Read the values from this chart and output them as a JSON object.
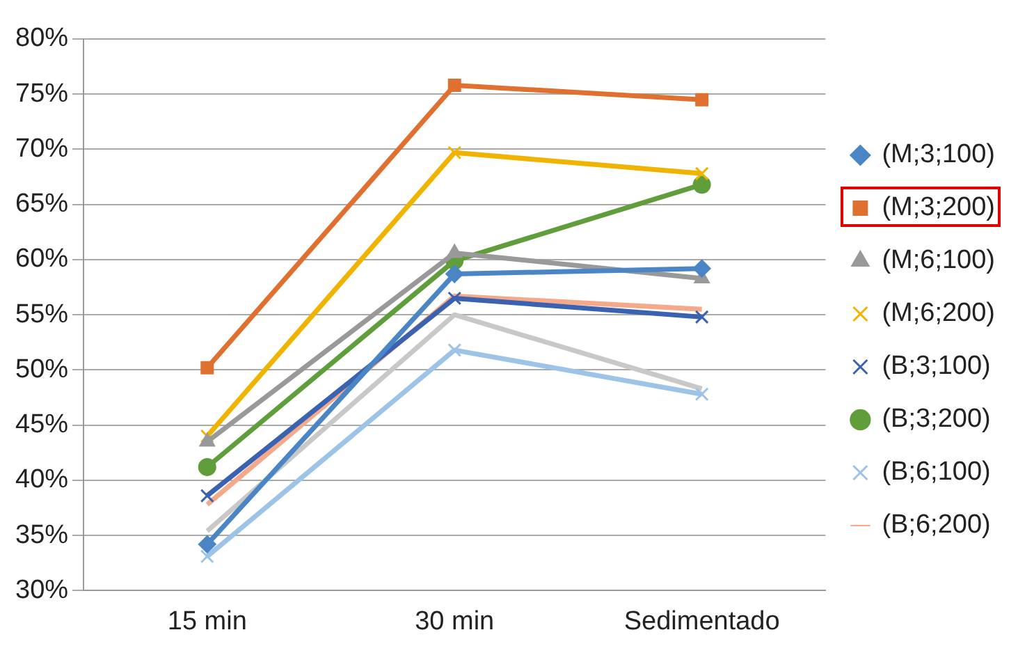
{
  "chart_data": {
    "type": "line",
    "categories": [
      "15 min",
      "30 min",
      "Sedimentado"
    ],
    "ylim": [
      30,
      80
    ],
    "yticks": [
      {
        "value": 30,
        "label": "30%"
      },
      {
        "value": 35,
        "label": "35%"
      },
      {
        "value": 40,
        "label": "40%"
      },
      {
        "value": 45,
        "label": "45%"
      },
      {
        "value": 50,
        "label": "50%"
      },
      {
        "value": 55,
        "label": "55%"
      },
      {
        "value": 60,
        "label": "60%"
      },
      {
        "value": 65,
        "label": "65%"
      },
      {
        "value": 70,
        "label": "70%"
      },
      {
        "value": 75,
        "label": "75%"
      },
      {
        "value": 80,
        "label": "80%"
      }
    ],
    "grid": "y",
    "legend": "right",
    "series": [
      {
        "name": "(M;3;100)",
        "color": "#4a86c5",
        "marker": "diamond",
        "values": [
          34.2,
          58.7,
          59.2
        ]
      },
      {
        "name": "(M;3;200)",
        "color": "#e07030",
        "marker": "square",
        "values": [
          50.2,
          75.8,
          74.5
        ]
      },
      {
        "name": "(M;6;100)",
        "color": "#999999",
        "marker": "triangle",
        "values": [
          43.5,
          60.6,
          58.3
        ]
      },
      {
        "name": "(M;6;200)",
        "color": "#f0b400",
        "marker": "cross",
        "values": [
          44.0,
          69.7,
          67.8
        ]
      },
      {
        "name": "(B;3;100)",
        "color": "#3a62b0",
        "marker": "cross",
        "values": [
          38.6,
          56.5,
          54.8
        ]
      },
      {
        "name": "(B;3;200)",
        "color": "#5f9e3a",
        "marker": "circle",
        "values": [
          41.2,
          59.9,
          66.8
        ]
      },
      {
        "name": "(B;6;100)",
        "color": "#9dc3e6",
        "marker": "cross",
        "values": [
          33.1,
          51.8,
          47.8
        ]
      },
      {
        "name": "(B;6;200)",
        "color": "#f4a98a",
        "marker": "none",
        "values": [
          37.8,
          56.7,
          55.5
        ]
      },
      {
        "color": "#c8c8c8",
        "marker": "none",
        "values": [
          35.4,
          55.0,
          48.3
        ]
      }
    ]
  }
}
